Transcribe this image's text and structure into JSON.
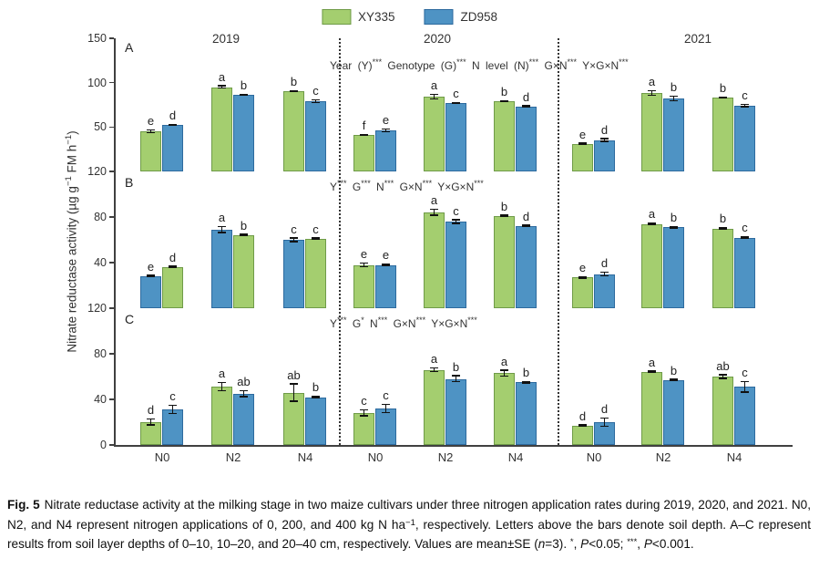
{
  "legend": {
    "items": [
      {
        "label": "XY335",
        "color": "#a4ce6f",
        "border": "#6f9b48"
      },
      {
        "label": "ZD958",
        "color": "#4e93c4",
        "border": "#2d6a9e"
      }
    ]
  },
  "colors": {
    "XY335": "#a4ce6f",
    "XY335_border": "#6f9b48",
    "ZD958": "#4e93c4",
    "ZD958_border": "#2d6a9e",
    "error_bar": "#111111",
    "axis": "#404040",
    "separator": "#333333"
  },
  "axes": {
    "y_label_segments": [
      "Nitrate reductase activity (µg g",
      "−1",
      " FM h",
      "−1",
      ")"
    ],
    "x_tick_labels": [
      "N0",
      "N2",
      "N4"
    ]
  },
  "chart_data": {
    "type": "bar",
    "title": "",
    "xlabel": "",
    "ylabel": "Nitrate reductase activity (µg g−1 FM h−1)",
    "legend_position": "top",
    "grid": false,
    "years": [
      "2019",
      "2020",
      "2021"
    ],
    "n_levels": [
      "N0",
      "N2",
      "N4"
    ],
    "series_names": [
      "XY335",
      "ZD958"
    ],
    "panels": [
      {
        "label": "A",
        "soil_depth": "0–10 cm",
        "ylim": [
          0,
          150
        ],
        "yticks": [
          150,
          100,
          50
        ],
        "annotation": "Year (Y)*** Genotype (G)*** N level (N)*** G×N*** Y×G×N***",
        "groups": [
          {
            "year": "2019",
            "n": "N0",
            "bars": [
              {
                "series": "XY335",
                "value": 45,
                "err": 2,
                "letter": "e"
              },
              {
                "series": "ZD958",
                "value": 52,
                "err": 1,
                "letter": "d"
              }
            ]
          },
          {
            "year": "2019",
            "n": "N2",
            "bars": [
              {
                "series": "XY335",
                "value": 95,
                "err": 2,
                "letter": "a"
              },
              {
                "series": "ZD958",
                "value": 86,
                "err": 1,
                "letter": "b"
              }
            ]
          },
          {
            "year": "2019",
            "n": "N4",
            "bars": [
              {
                "series": "XY335",
                "value": 90,
                "err": 1,
                "letter": "b"
              },
              {
                "series": "ZD958",
                "value": 79,
                "err": 2,
                "letter": "c"
              }
            ]
          },
          {
            "year": "2020",
            "n": "N0",
            "bars": [
              {
                "series": "XY335",
                "value": 41,
                "err": 1,
                "letter": "f"
              },
              {
                "series": "ZD958",
                "value": 46,
                "err": 2,
                "letter": "e"
              }
            ]
          },
          {
            "year": "2020",
            "n": "N2",
            "bars": [
              {
                "series": "XY335",
                "value": 84,
                "err": 3,
                "letter": "a"
              },
              {
                "series": "ZD958",
                "value": 77,
                "err": 1,
                "letter": "c"
              }
            ]
          },
          {
            "year": "2020",
            "n": "N4",
            "bars": [
              {
                "series": "XY335",
                "value": 79,
                "err": 1,
                "letter": "b"
              },
              {
                "series": "ZD958",
                "value": 73,
                "err": 1,
                "letter": "d"
              }
            ]
          },
          {
            "year": "2021",
            "n": "N0",
            "bars": [
              {
                "series": "XY335",
                "value": 31,
                "err": 1,
                "letter": "e"
              },
              {
                "series": "ZD958",
                "value": 35,
                "err": 2,
                "letter": "d"
              }
            ]
          },
          {
            "year": "2021",
            "n": "N2",
            "bars": [
              {
                "series": "XY335",
                "value": 88,
                "err": 3,
                "letter": "a"
              },
              {
                "series": "ZD958",
                "value": 82,
                "err": 3,
                "letter": "b"
              }
            ]
          },
          {
            "year": "2021",
            "n": "N4",
            "bars": [
              {
                "series": "XY335",
                "value": 83,
                "err": 1,
                "letter": "b"
              },
              {
                "series": "ZD958",
                "value": 74,
                "err": 2,
                "letter": "c"
              }
            ]
          }
        ]
      },
      {
        "label": "B",
        "soil_depth": "10–20 cm",
        "ylim": [
          0,
          120
        ],
        "yticks": [
          120,
          80,
          40
        ],
        "annotation": "Y*** G*** N*** G×N*** Y×G×N***",
        "groups": [
          {
            "year": "2019",
            "n": "N0",
            "bars": [
              {
                "series": "ZD958",
                "value": 28,
                "err": 1,
                "letter": "e"
              },
              {
                "series": "XY335",
                "value": 36,
                "err": 1,
                "letter": "d"
              }
            ]
          },
          {
            "year": "2019",
            "n": "N2",
            "bars": [
              {
                "series": "ZD958",
                "value": 69,
                "err": 3,
                "letter": "a"
              },
              {
                "series": "XY335",
                "value": 64,
                "err": 1,
                "letter": "b"
              }
            ]
          },
          {
            "year": "2019",
            "n": "N4",
            "bars": [
              {
                "series": "ZD958",
                "value": 60,
                "err": 2,
                "letter": "c"
              },
              {
                "series": "XY335",
                "value": 61,
                "err": 1,
                "letter": "c"
              }
            ]
          },
          {
            "year": "2020",
            "n": "N0",
            "bars": [
              {
                "series": "XY335",
                "value": 38,
                "err": 2,
                "letter": "e"
              },
              {
                "series": "ZD958",
                "value": 38,
                "err": 1,
                "letter": "e"
              }
            ]
          },
          {
            "year": "2020",
            "n": "N2",
            "bars": [
              {
                "series": "XY335",
                "value": 84,
                "err": 3,
                "letter": "a"
              },
              {
                "series": "ZD958",
                "value": 76,
                "err": 2,
                "letter": "c"
              }
            ]
          },
          {
            "year": "2020",
            "n": "N4",
            "bars": [
              {
                "series": "XY335",
                "value": 81,
                "err": 1,
                "letter": "b"
              },
              {
                "series": "ZD958",
                "value": 72,
                "err": 1,
                "letter": "d"
              }
            ]
          },
          {
            "year": "2021",
            "n": "N0",
            "bars": [
              {
                "series": "XY335",
                "value": 27,
                "err": 1,
                "letter": "e"
              },
              {
                "series": "ZD958",
                "value": 30,
                "err": 2,
                "letter": "d"
              }
            ]
          },
          {
            "year": "2021",
            "n": "N2",
            "bars": [
              {
                "series": "XY335",
                "value": 74,
                "err": 1,
                "letter": "a"
              },
              {
                "series": "ZD958",
                "value": 71,
                "err": 1,
                "letter": "b"
              }
            ]
          },
          {
            "year": "2021",
            "n": "N4",
            "bars": [
              {
                "series": "XY335",
                "value": 70,
                "err": 1,
                "letter": "b"
              },
              {
                "series": "ZD958",
                "value": 62,
                "err": 1,
                "letter": "c"
              }
            ]
          }
        ]
      },
      {
        "label": "C",
        "soil_depth": "20–40 cm",
        "ylim": [
          0,
          120
        ],
        "yticks": [
          120,
          80,
          40,
          0
        ],
        "annotation": "Y*** G* N*** G×N*** Y×G×N***",
        "groups": [
          {
            "year": "2019",
            "n": "N0",
            "bars": [
              {
                "series": "XY335",
                "value": 20,
                "err": 3,
                "letter": "d"
              },
              {
                "series": "ZD958",
                "value": 31,
                "err": 4,
                "letter": "c"
              }
            ]
          },
          {
            "year": "2019",
            "n": "N2",
            "bars": [
              {
                "series": "XY335",
                "value": 51,
                "err": 4,
                "letter": "a"
              },
              {
                "series": "ZD958",
                "value": 45,
                "err": 3,
                "letter": "ab"
              }
            ]
          },
          {
            "year": "2019",
            "n": "N4",
            "bars": [
              {
                "series": "XY335",
                "value": 46,
                "err": 8,
                "letter": "ab"
              },
              {
                "series": "ZD958",
                "value": 42,
                "err": 1,
                "letter": "b"
              }
            ]
          },
          {
            "year": "2020",
            "n": "N0",
            "bars": [
              {
                "series": "XY335",
                "value": 28,
                "err": 3,
                "letter": "c"
              },
              {
                "series": "ZD958",
                "value": 32,
                "err": 4,
                "letter": "c"
              }
            ]
          },
          {
            "year": "2020",
            "n": "N2",
            "bars": [
              {
                "series": "XY335",
                "value": 66,
                "err": 2,
                "letter": "a"
              },
              {
                "series": "ZD958",
                "value": 58,
                "err": 3,
                "letter": "b"
              }
            ]
          },
          {
            "year": "2020",
            "n": "N4",
            "bars": [
              {
                "series": "XY335",
                "value": 63,
                "err": 3,
                "letter": "a"
              },
              {
                "series": "ZD958",
                "value": 55,
                "err": 1,
                "letter": "b"
              }
            ]
          },
          {
            "year": "2021",
            "n": "N0",
            "bars": [
              {
                "series": "XY335",
                "value": 17,
                "err": 1,
                "letter": "d"
              },
              {
                "series": "ZD958",
                "value": 20,
                "err": 4,
                "letter": "d"
              }
            ]
          },
          {
            "year": "2021",
            "n": "N2",
            "bars": [
              {
                "series": "XY335",
                "value": 64,
                "err": 1,
                "letter": "a"
              },
              {
                "series": "ZD958",
                "value": 57,
                "err": 1,
                "letter": "b"
              }
            ]
          },
          {
            "year": "2021",
            "n": "N4",
            "bars": [
              {
                "series": "XY335",
                "value": 60,
                "err": 2,
                "letter": "ab"
              },
              {
                "series": "ZD958",
                "value": 51,
                "err": 5,
                "letter": "c"
              }
            ]
          }
        ]
      }
    ]
  },
  "caption": {
    "segments": [
      {
        "style": "bold",
        "text": "Fig. 5"
      },
      {
        "style": "normal",
        "text": "Nitrate reductase activity at the milking stage in two maize cultivars under three nitrogen application rates during 2019, 2020, and 2021.  N0, N2, and N4 represent nitrogen applications of 0, 200, and 400 kg N ha"
      },
      {
        "style": "sup",
        "text": "−1"
      },
      {
        "style": "normal",
        "text": ", respectively.  Letters above the bars denote soil depth.  A–C represent results from soil layer depths of 0–10, 10–20, and 20–40 cm, respectively.  Values are mean±SE ("
      },
      {
        "style": "italic",
        "text": "n"
      },
      {
        "style": "normal",
        "text": "=3).  "
      },
      {
        "style": "sup",
        "text": "*"
      },
      {
        "style": "normal",
        "text": ", "
      },
      {
        "style": "italic",
        "text": "P"
      },
      {
        "style": "normal",
        "text": "<0.05; "
      },
      {
        "style": "sup",
        "text": "***"
      },
      {
        "style": "normal",
        "text": ", "
      },
      {
        "style": "italic",
        "text": "P"
      },
      {
        "style": "normal",
        "text": "<0.001."
      }
    ]
  }
}
